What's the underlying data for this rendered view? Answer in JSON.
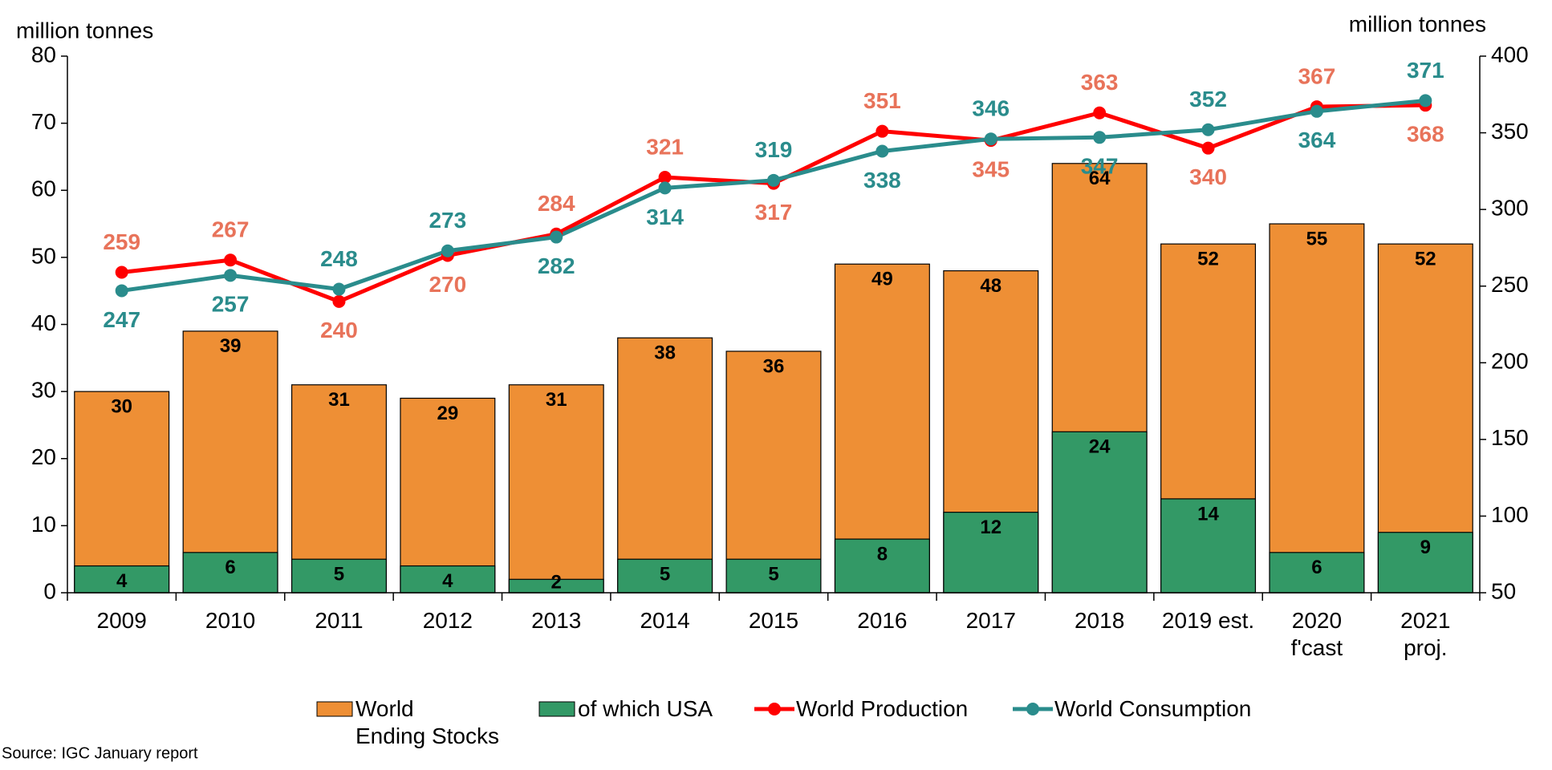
{
  "chart_data": {
    "type": "bar_line",
    "y_label": "million tonnes",
    "y2_label": "million tonnes",
    "categories": [
      "2009",
      "2010",
      "2011",
      "2012",
      "2013",
      "2014",
      "2015",
      "2016",
      "2017",
      "2018",
      "2019 est.",
      "2020\nf'cast",
      "2021\nproj."
    ],
    "series": [
      {
        "name": "World\nEnding Stocks",
        "color": "#ee8f35",
        "type": "bar",
        "values": [
          30,
          39,
          31,
          29,
          31,
          38,
          36,
          49,
          48,
          64,
          52,
          55,
          52
        ]
      },
      {
        "name": "of which USA",
        "color": "#339966",
        "type": "bar",
        "values": [
          4,
          6,
          5,
          4,
          2,
          5,
          5,
          8,
          12,
          24,
          14,
          6,
          9
        ]
      },
      {
        "name": "World Production",
        "color": "#ff0000",
        "label_color": "#e8735a",
        "type": "line",
        "axis": "y2",
        "values": [
          259,
          267,
          240,
          270,
          284,
          321,
          317,
          351,
          345,
          363,
          340,
          367,
          368
        ]
      },
      {
        "name": "World Consumption",
        "color": "#2a8c8c",
        "label_color": "#2a8c8c",
        "type": "line",
        "axis": "y2",
        "values": [
          247,
          257,
          248,
          273,
          282,
          314,
          319,
          338,
          346,
          347,
          352,
          364,
          371
        ]
      }
    ],
    "ylim": [
      0,
      80
    ],
    "yticks": [
      0,
      10,
      20,
      30,
      40,
      50,
      60,
      70,
      80
    ],
    "y2lim": [
      50,
      400
    ],
    "y2ticks": [
      50,
      100,
      150,
      200,
      250,
      300,
      350,
      400
    ],
    "source": "Source: IGC January report"
  }
}
